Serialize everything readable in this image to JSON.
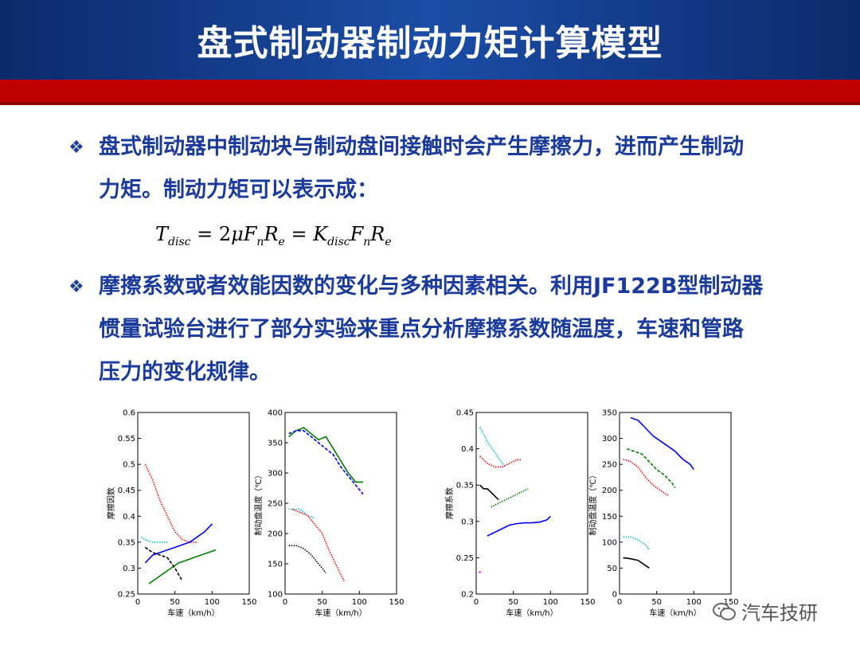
{
  "header": {
    "title": "盘式制动器制动力矩计算模型"
  },
  "content": {
    "bullet1_line1": "盘式制动器中制动块与制动盘间接触时会产生摩擦力，进而产生制动",
    "bullet1_line2": "力矩。制动力矩可以表示成：",
    "formula": {
      "lhs_main": "T",
      "lhs_sub": "disc",
      "eq1": "= 2",
      "mu": "μ",
      "F1": "F",
      "F1_sub": "n",
      "R1": "R",
      "R1_sub": "e",
      "eq2": "= ",
      "K": "K",
      "K_sub": "disc",
      "F2": "F",
      "F2_sub": "n",
      "R2": "R",
      "R2_sub": "e"
    },
    "bullet2_line1": "摩擦系数或者效能因数的变化与多种因素相关。利用JF122B型制动器",
    "bullet2_line2": "惯量试验台进行了部分实验来重点分析摩擦系数随温度，车速和管路",
    "bullet2_line3": "压力的变化规律。"
  },
  "watermark": {
    "text": "汽车技研"
  },
  "chart_data": [
    {
      "type": "line",
      "xlabel": "车速（km/h）",
      "ylabel": "摩擦因数",
      "xlim": [
        0,
        150
      ],
      "ylim": [
        0.25,
        0.6
      ],
      "xticks": [
        "0",
        "50",
        "100",
        "150"
      ],
      "yticks": [
        "0.25",
        "0.3",
        "0.35",
        "0.4",
        "0.45",
        "0.5",
        "0.55",
        "0.6"
      ],
      "series": [
        {
          "color": "#ff0000",
          "style": "dotted",
          "x": [
            10,
            20,
            30,
            40,
            50,
            60,
            70,
            80
          ],
          "y": [
            0.5,
            0.47,
            0.43,
            0.4,
            0.37,
            0.355,
            0.35,
            0.35
          ]
        },
        {
          "color": "#00c0c0",
          "style": "dotted",
          "x": [
            5,
            10,
            20,
            30,
            40
          ],
          "y": [
            0.36,
            0.355,
            0.35,
            0.35,
            0.35
          ]
        },
        {
          "color": "#0000ff",
          "style": "solid",
          "x": [
            10,
            20,
            30,
            40,
            50,
            60,
            70,
            80,
            90,
            100
          ],
          "y": [
            0.31,
            0.325,
            0.33,
            0.335,
            0.34,
            0.345,
            0.35,
            0.36,
            0.37,
            0.385
          ]
        },
        {
          "color": "#008000",
          "style": "solid",
          "x": [
            15,
            25,
            35,
            45,
            55,
            65,
            75,
            85,
            95,
            105
          ],
          "y": [
            0.27,
            0.28,
            0.29,
            0.3,
            0.31,
            0.315,
            0.32,
            0.325,
            0.33,
            0.335
          ]
        },
        {
          "color": "#000000",
          "style": "dashed",
          "x": [
            10,
            20,
            30,
            40,
            50,
            60
          ],
          "y": [
            0.34,
            0.33,
            0.325,
            0.32,
            0.3,
            0.275
          ]
        }
      ]
    },
    {
      "type": "line",
      "xlabel": "车速（km/h）",
      "ylabel": "制动盘温度（℃）",
      "xlim": [
        0,
        150
      ],
      "ylim": [
        100,
        400
      ],
      "xticks": [
        "0",
        "50",
        "100",
        "150"
      ],
      "yticks": [
        "100",
        "150",
        "200",
        "250",
        "300",
        "350",
        "400"
      ],
      "series": [
        {
          "color": "#008000",
          "style": "solid",
          "x": [
            5,
            15,
            25,
            35,
            45,
            55,
            65,
            75,
            85,
            95,
            105
          ],
          "y": [
            360,
            370,
            375,
            365,
            355,
            360,
            340,
            320,
            300,
            285,
            285
          ]
        },
        {
          "color": "#0000ff",
          "style": "dashed",
          "x": [
            5,
            15,
            25,
            35,
            45,
            55,
            65,
            75,
            85,
            95,
            105
          ],
          "y": [
            365,
            370,
            370,
            360,
            350,
            340,
            330,
            310,
            295,
            280,
            265
          ]
        },
        {
          "color": "#00c0c0",
          "style": "dotted",
          "x": [
            5,
            10,
            20,
            30,
            40
          ],
          "y": [
            240,
            240,
            240,
            230,
            225
          ]
        },
        {
          "color": "#ff0000",
          "style": "dotted",
          "x": [
            10,
            20,
            30,
            40,
            50,
            60,
            70,
            80
          ],
          "y": [
            240,
            235,
            230,
            215,
            200,
            170,
            145,
            120
          ]
        },
        {
          "color": "#000000",
          "style": "dotted",
          "x": [
            5,
            15,
            25,
            35,
            45,
            55
          ],
          "y": [
            180,
            180,
            175,
            165,
            150,
            135
          ]
        }
      ]
    },
    {
      "type": "line",
      "xlabel": "车速（km/h）",
      "ylabel": "摩擦系数",
      "xlim": [
        0,
        150
      ],
      "ylim": [
        0.2,
        0.45
      ],
      "xticks": [
        "0",
        "50",
        "100",
        "150"
      ],
      "yticks": [
        "0.2",
        "0.25",
        "0.3",
        "0.35",
        "0.4",
        "0.45"
      ],
      "series": [
        {
          "color": "#00c0c0",
          "style": "dotted",
          "x": [
            5,
            15,
            25,
            35,
            40
          ],
          "y": [
            0.43,
            0.41,
            0.395,
            0.38,
            0.375
          ]
        },
        {
          "color": "#ff0000",
          "style": "dotted",
          "x": [
            5,
            15,
            25,
            35,
            45,
            55,
            60
          ],
          "y": [
            0.39,
            0.38,
            0.375,
            0.375,
            0.38,
            0.385,
            0.385
          ]
        },
        {
          "color": "#008000",
          "style": "dotted",
          "x": [
            20,
            30,
            40,
            50,
            60,
            70
          ],
          "y": [
            0.32,
            0.325,
            0.33,
            0.335,
            0.34,
            0.345
          ]
        },
        {
          "color": "#0000ff",
          "style": "solid",
          "x": [
            15,
            25,
            35,
            45,
            55,
            65,
            75,
            85,
            95,
            100
          ],
          "y": [
            0.28,
            0.285,
            0.29,
            0.295,
            0.297,
            0.298,
            0.298,
            0.299,
            0.302,
            0.307
          ]
        },
        {
          "color": "#000000",
          "style": "solid",
          "x": [
            5,
            10,
            15,
            20,
            25,
            30
          ],
          "y": [
            0.35,
            0.345,
            0.345,
            0.34,
            0.335,
            0.33
          ]
        },
        {
          "color": "#ff00ff",
          "style": "dotted",
          "x": [
            5
          ],
          "y": [
            0.23
          ]
        }
      ]
    },
    {
      "type": "line",
      "xlabel": "车速（km/h）",
      "ylabel": "制动盘温度（℃）",
      "xlim": [
        0,
        150
      ],
      "ylim": [
        0,
        350
      ],
      "xticks": [
        "0",
        "50",
        "100",
        "150"
      ],
      "yticks": [
        "0",
        "50",
        "100",
        "150",
        "200",
        "250",
        "300",
        "350"
      ],
      "series": [
        {
          "color": "#0000ff",
          "style": "solid",
          "x": [
            15,
            25,
            35,
            45,
            55,
            65,
            75,
            85,
            95,
            100
          ],
          "y": [
            340,
            335,
            320,
            305,
            295,
            285,
            275,
            260,
            250,
            240
          ]
        },
        {
          "color": "#008000",
          "style": "dashed",
          "x": [
            10,
            20,
            30,
            40,
            50,
            60,
            70,
            75
          ],
          "y": [
            280,
            275,
            270,
            255,
            240,
            230,
            215,
            205
          ]
        },
        {
          "color": "#ff0000",
          "style": "dotted",
          "x": [
            5,
            15,
            25,
            35,
            45,
            55,
            65
          ],
          "y": [
            260,
            255,
            245,
            225,
            210,
            200,
            190
          ]
        },
        {
          "color": "#00c0c0",
          "style": "dotted",
          "x": [
            5,
            15,
            25,
            35,
            40
          ],
          "y": [
            110,
            110,
            105,
            95,
            85
          ]
        },
        {
          "color": "#000000",
          "style": "solid",
          "x": [
            5,
            15,
            25,
            35,
            40
          ],
          "y": [
            70,
            68,
            65,
            55,
            50
          ]
        }
      ]
    }
  ]
}
